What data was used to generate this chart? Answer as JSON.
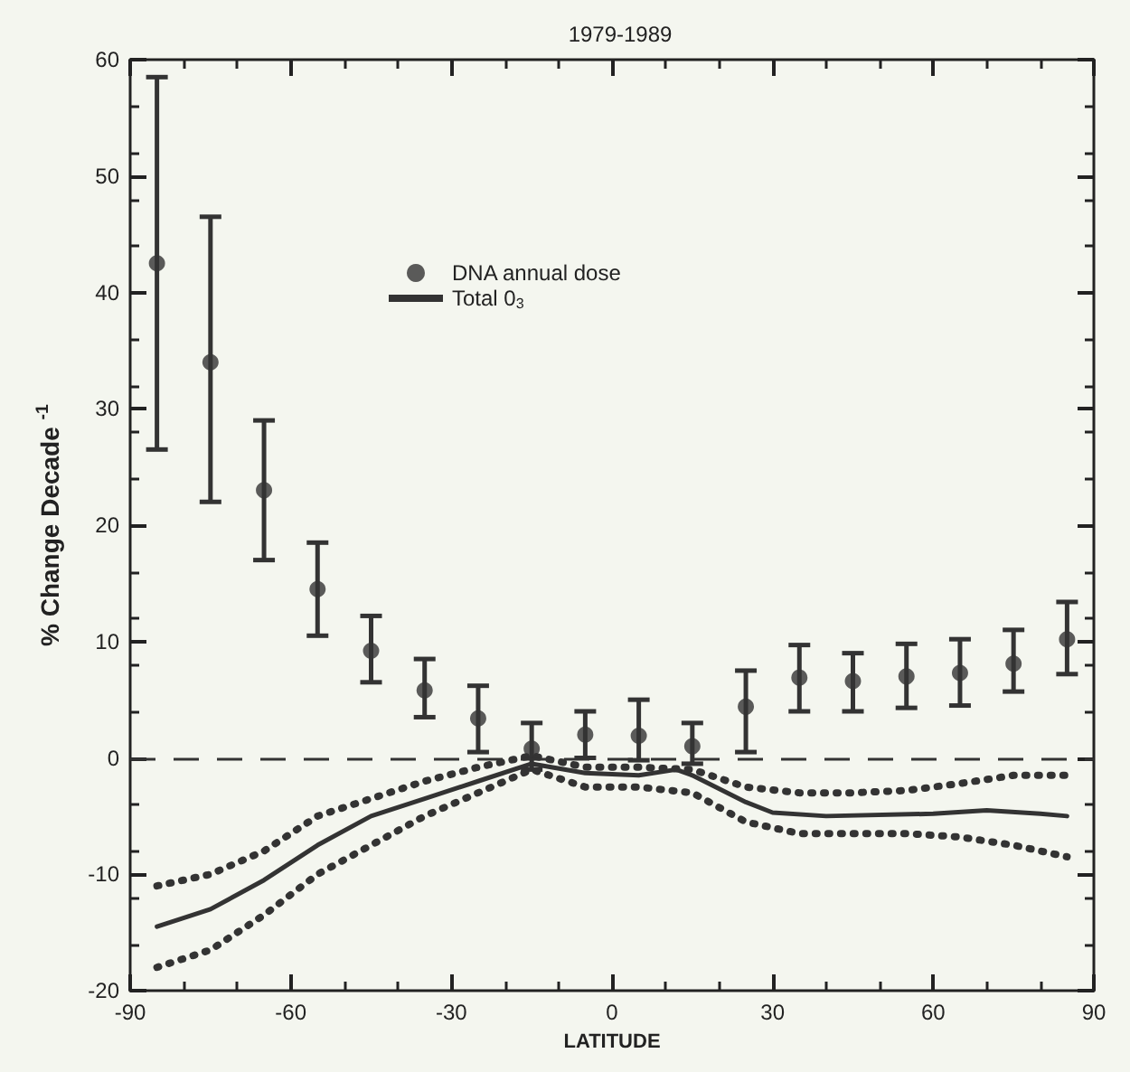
{
  "chart_data": {
    "type": "scatter",
    "title": "1979-1989",
    "xlabel": "LATITUDE",
    "ylabel": "% Change Decade $^{-1}$",
    "xlim": [
      -90,
      90
    ],
    "xticks": [
      -90,
      -60,
      -30,
      0,
      30,
      60,
      90
    ],
    "ylim": [
      -20,
      60
    ],
    "yticks": [
      -20,
      -10,
      0,
      10,
      20,
      30,
      40,
      50,
      60
    ],
    "grid": false,
    "legend": "top left",
    "marker": "circle",
    "ref_lines": [
      {
        "axis": "y",
        "value": 0,
        "label": null,
        "color": "#333333",
        "line_style": "dashed"
      }
    ],
    "series": [
      {
        "name": "DNA annual dose",
        "color": "#333333",
        "x": [
          -85,
          -75,
          -65,
          -55,
          -45,
          -35,
          -25,
          -15,
          -5,
          5,
          15,
          25,
          35,
          45,
          55,
          65,
          75,
          85
        ],
        "values": [
          42.5,
          34,
          23,
          14.5,
          9.2,
          5.8,
          3.4,
          0.8,
          2,
          1.9,
          1,
          4.4,
          6.9,
          6.6,
          7,
          7.3,
          8.1,
          10.2
        ],
        "errors": [
          [
            26.5,
            58.5
          ],
          [
            22,
            46.5
          ],
          [
            17,
            29
          ],
          [
            10.5,
            18.5
          ],
          [
            6.5,
            12.2
          ],
          [
            3.5,
            8.5
          ],
          [
            0.5,
            6.2
          ],
          [
            -1,
            3
          ],
          [
            0,
            4
          ],
          [
            -0.2,
            5
          ],
          [
            -0.5,
            3
          ],
          [
            0.5,
            7.5
          ],
          [
            4,
            9.7
          ],
          [
            4,
            9
          ],
          [
            4.3,
            9.8
          ],
          [
            4.5,
            10.2
          ],
          [
            5.7,
            11
          ],
          [
            7.2,
            13.4
          ]
        ]
      },
      {
        "name": "Total 0$_{3}$",
        "type": "line",
        "color": "#333333",
        "marker": "none",
        "line_style": "solid",
        "x": [
          -85,
          -75,
          -65,
          -55,
          -45,
          -35,
          -25,
          -15,
          -5,
          5,
          12,
          15,
          25,
          30,
          40,
          60,
          70,
          80,
          85
        ],
        "values": [
          -14.5,
          -13,
          -10.5,
          -7.5,
          -5,
          -3.5,
          -2,
          -0.5,
          -1.3,
          -1.5,
          -1,
          -1.5,
          -3.8,
          -4.7,
          -5,
          -4.8,
          -4.5,
          -4.8,
          -5
        ]
      },
      {
        "type": "line",
        "color": "#333333",
        "marker": "none",
        "line_style": "dotted",
        "x": [
          -85,
          -75,
          -65,
          -55,
          -45,
          -35,
          -25,
          -15,
          -5,
          5,
          15,
          25,
          35,
          45,
          55,
          65,
          75,
          85
        ],
        "values": [
          -11,
          -10,
          -8,
          -5,
          -3.5,
          -2,
          -0.8,
          0.2,
          -0.8,
          -0.8,
          -1,
          -2.5,
          -3,
          -3,
          -2.8,
          -2.2,
          -1.5,
          -1.5
        ]
      },
      {
        "type": "line",
        "color": "#333333",
        "marker": "none",
        "line_style": "dotted",
        "x": [
          -85,
          -75,
          -65,
          -55,
          -45,
          -35,
          -25,
          -15,
          -5,
          5,
          15,
          25,
          35,
          45,
          55,
          65,
          75,
          85
        ],
        "values": [
          -18,
          -16.5,
          -13.5,
          -10,
          -7.5,
          -5,
          -3,
          -1,
          -2.5,
          -2.5,
          -3,
          -5.5,
          -6.5,
          -6.5,
          -6.5,
          -6.8,
          -7.5,
          -8.5
        ]
      }
    ]
  }
}
